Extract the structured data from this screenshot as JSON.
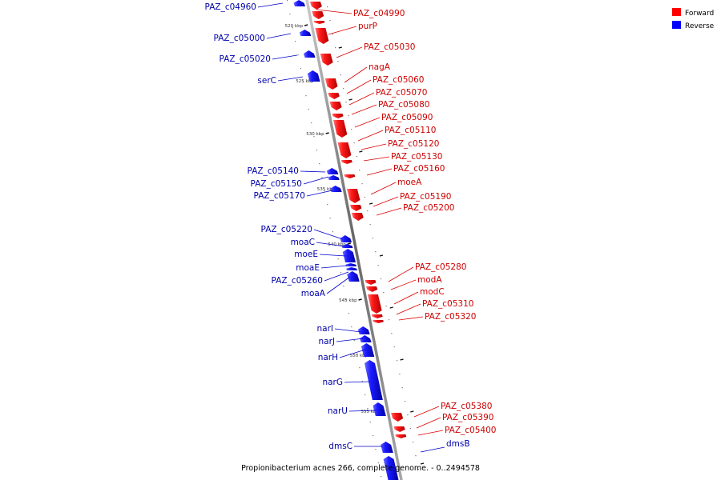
{
  "caption": "Propionibacterium acnes 266, complete genome. - 0..2494578",
  "legend": [
    {
      "label": "Forward",
      "color": "#ff0000"
    },
    {
      "label": "Reverse",
      "color": "#0000ff"
    }
  ],
  "colors": {
    "forward": "#ee1111",
    "reverse": "#1414ee",
    "axis": "#888888",
    "forward_label": "#cc0000",
    "reverse_label": "#0000aa"
  },
  "ticks": [
    "520 kbp",
    "525 kbp",
    "530 kbp",
    "535 kbp",
    "540 kbp",
    "545 kbp",
    "550 kbp",
    "555 kbp"
  ],
  "forward_genes": [
    "PAZ_c04990",
    "purP",
    "PAZ_c05030",
    "nagA",
    "PAZ_c05060",
    "PAZ_c05070",
    "PAZ_c05080",
    "PAZ_c05090",
    "PAZ_c05110",
    "PAZ_c05120",
    "PAZ_c05130",
    "PAZ_c05160",
    "moeA",
    "PAZ_c05190",
    "PAZ_c05200",
    "PAZ_c05280",
    "modA",
    "modC",
    "PAZ_c05310",
    "PAZ_c05320",
    "PAZ_c05380",
    "PAZ_c05390",
    "PAZ_c05400"
  ],
  "reverse_genes": [
    "PAZ_c04960",
    "PAZ_c05000",
    "PAZ_c05020",
    "serC",
    "PAZ_c05140",
    "PAZ_c05150",
    "PAZ_c05170",
    "PAZ_c05220",
    "moaC",
    "moeE",
    "moaE",
    "PAZ_c05260",
    "moaA",
    "narI",
    "narJ",
    "narH",
    "narG",
    "narU",
    "dmsC",
    "dmsB"
  ]
}
